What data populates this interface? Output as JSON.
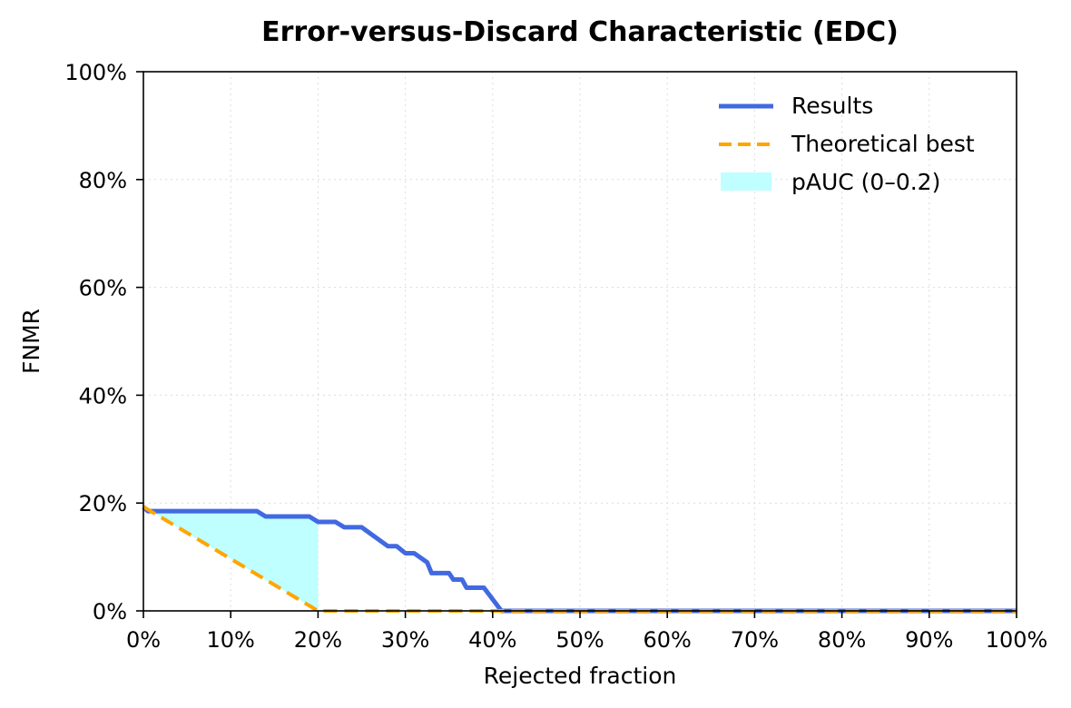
{
  "chart_data": {
    "type": "line",
    "title": "Error-versus-Discard Characteristic (EDC)",
    "xlabel": "Rejected fraction",
    "ylabel": "FNMR",
    "xlim": [
      0,
      1
    ],
    "ylim": [
      0,
      1
    ],
    "x_ticks": [
      0,
      0.1,
      0.2,
      0.3,
      0.4,
      0.5,
      0.6,
      0.7,
      0.8,
      0.9,
      1.0
    ],
    "y_ticks": [
      0,
      0.2,
      0.4,
      0.6,
      0.8,
      1.0
    ],
    "x_tick_labels": [
      "0%",
      "10%",
      "20%",
      "30%",
      "40%",
      "50%",
      "60%",
      "70%",
      "80%",
      "90%",
      "100%"
    ],
    "y_tick_labels": [
      "0%",
      "20%",
      "40%",
      "60%",
      "80%",
      "100%"
    ],
    "grid": true,
    "legend_position": "top-right",
    "series": [
      {
        "name": "Results",
        "color": "#4169E1",
        "style": "solid",
        "points": [
          [
            0.0,
            0.193
          ],
          [
            0.005,
            0.185
          ],
          [
            0.13,
            0.185
          ],
          [
            0.14,
            0.175
          ],
          [
            0.19,
            0.175
          ],
          [
            0.2,
            0.165
          ],
          [
            0.22,
            0.165
          ],
          [
            0.23,
            0.155
          ],
          [
            0.25,
            0.155
          ],
          [
            0.28,
            0.12
          ],
          [
            0.29,
            0.12
          ],
          [
            0.3,
            0.107
          ],
          [
            0.31,
            0.107
          ],
          [
            0.325,
            0.09
          ],
          [
            0.33,
            0.07
          ],
          [
            0.345,
            0.07
          ],
          [
            0.35,
            0.07
          ],
          [
            0.355,
            0.058
          ],
          [
            0.365,
            0.058
          ],
          [
            0.37,
            0.043
          ],
          [
            0.39,
            0.043
          ],
          [
            0.41,
            0.0
          ],
          [
            1.0,
            0.0
          ]
        ]
      },
      {
        "name": "Theoretical best",
        "color": "#FFA500",
        "style": "dashed",
        "points": [
          [
            0.0,
            0.193
          ],
          [
            0.2,
            0.0
          ],
          [
            1.0,
            0.0
          ]
        ]
      }
    ],
    "area": {
      "name": "pAUC (0–0.2)",
      "color": "#BFFFFF",
      "x_range": [
        0,
        0.2
      ]
    }
  }
}
